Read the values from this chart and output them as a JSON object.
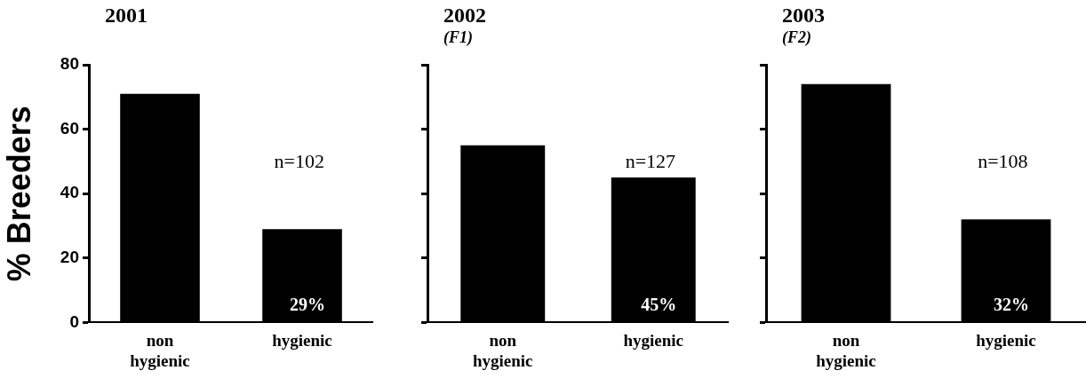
{
  "chart_data": [
    {
      "type": "bar",
      "title": "2001",
      "ylabel": "% Breeders",
      "categories": [
        "non hygienic",
        "hygienic"
      ],
      "values": [
        71,
        29
      ],
      "color": "#000000",
      "value_labels": [
        null,
        "29%"
      ],
      "annotations": [
        "n=102"
      ],
      "ylim": [
        0,
        80
      ],
      "yticks": [
        0,
        20,
        40,
        60,
        80
      ],
      "grid": false,
      "legend": false
    },
    {
      "type": "bar",
      "title": "2002",
      "subtitle": "(F1)",
      "categories": [
        "non hygienic",
        "hygienic"
      ],
      "values": [
        55,
        45
      ],
      "color": "#000000",
      "value_labels": [
        null,
        "45%"
      ],
      "annotations": [
        "n=127"
      ],
      "ylim": [
        0,
        80
      ],
      "yticks": [
        0,
        20,
        40,
        60,
        80
      ],
      "grid": false,
      "legend": false,
      "tick_labels": "x"
    },
    {
      "type": "bar",
      "title": "2003",
      "subtitle": "(F2)",
      "categories": [
        "non hygienic",
        "hygienic"
      ],
      "values": [
        74,
        32
      ],
      "color": "#000000",
      "value_labels": [
        null,
        "32%"
      ],
      "annotations": [
        "n=108"
      ],
      "ylim": [
        0,
        80
      ],
      "yticks": [
        0,
        20,
        40,
        60,
        80
      ],
      "grid": false,
      "legend": false,
      "tick_labels": "x"
    }
  ]
}
